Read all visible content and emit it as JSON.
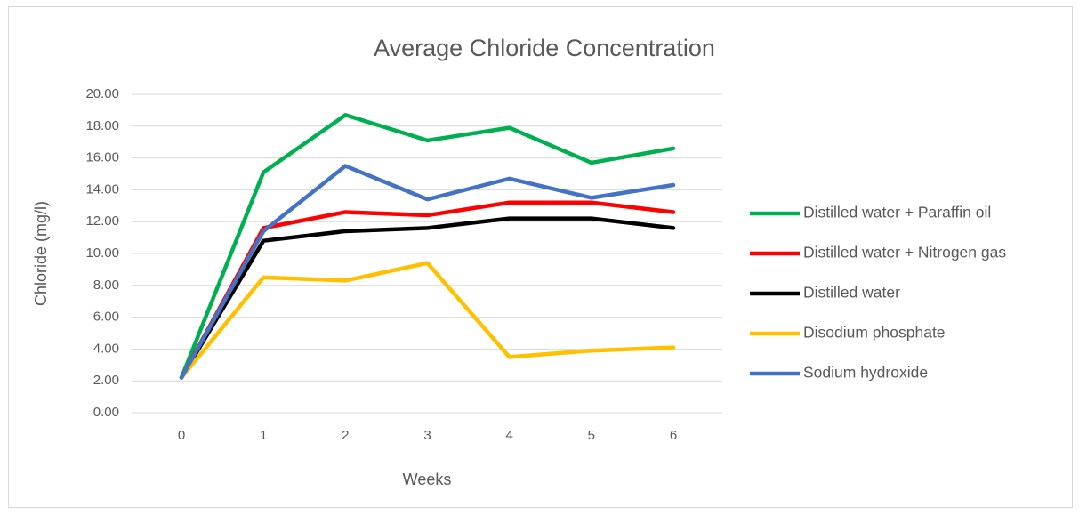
{
  "chart_data": {
    "type": "line",
    "title": "Average Chloride Concentration",
    "x_label": "Weeks",
    "y_label": "Chloride (mg/l)",
    "categories": [
      "0",
      "1",
      "2",
      "3",
      "4",
      "5",
      "6"
    ],
    "series": [
      {
        "name": "Distilled water + Paraffin oil",
        "color": "#00b050",
        "values": [
          2.2,
          15.1,
          18.7,
          17.1,
          17.9,
          15.7,
          16.6
        ]
      },
      {
        "name": "Distilled water + Nitrogen gas",
        "color": "#ff0000",
        "values": [
          2.2,
          11.6,
          12.6,
          12.4,
          13.2,
          13.2,
          12.6
        ]
      },
      {
        "name": "Distilled water",
        "color": "#000000",
        "values": [
          2.2,
          10.8,
          11.4,
          11.6,
          12.2,
          12.2,
          11.6
        ]
      },
      {
        "name": "Disodium phosphate",
        "color": "#ffc000",
        "values": [
          2.2,
          8.5,
          8.3,
          9.4,
          3.5,
          3.9,
          4.1
        ]
      },
      {
        "name": "Sodium hydroxide",
        "color": "#4472c4",
        "values": [
          2.2,
          11.4,
          15.5,
          13.4,
          14.7,
          13.5,
          14.3
        ]
      }
    ],
    "ylim": [
      0,
      20
    ],
    "yticks": [
      {
        "value": 0,
        "label": "0.00"
      },
      {
        "value": 2,
        "label": "2.00"
      },
      {
        "value": 4,
        "label": "4.00"
      },
      {
        "value": 6,
        "label": "6.00"
      },
      {
        "value": 8,
        "label": "8.00"
      },
      {
        "value": 10,
        "label": "10.00"
      },
      {
        "value": 12,
        "label": "12.00"
      },
      {
        "value": 14,
        "label": "14.00"
      },
      {
        "value": 16,
        "label": "16.00"
      },
      {
        "value": 18,
        "label": "18.00"
      },
      {
        "value": 20,
        "label": "20.00"
      }
    ],
    "grid": true,
    "legend": "right"
  }
}
